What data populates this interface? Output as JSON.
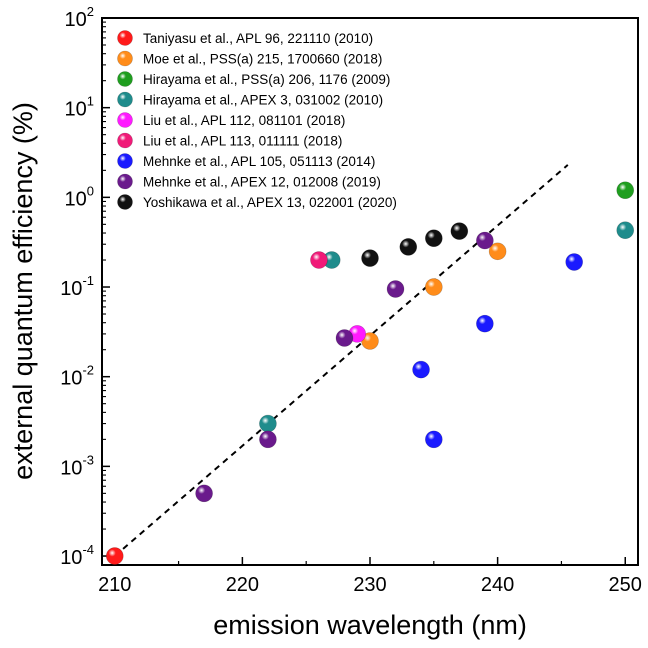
{
  "chart_data": {
    "type": "scatter",
    "xlabel": "emission wavelength (nm)",
    "ylabel": "external quantum efficiency (%)",
    "xlim": [
      209,
      251
    ],
    "ylim_log10": [
      -4.1,
      2
    ],
    "y_scale": "log",
    "grid": false,
    "legend_position": "top-left",
    "x_ticks": [
      210,
      220,
      230,
      240,
      250
    ],
    "x_tick_labels": [
      "210",
      "220",
      "230",
      "240",
      "250"
    ],
    "y_ticks_exp": [
      -4,
      -3,
      -2,
      -1,
      0,
      1,
      2
    ],
    "y_tick_base": "10",
    "y_tick_exponents": [
      "-4",
      "-3",
      "-2",
      "-1",
      "0",
      "1",
      "2"
    ],
    "trend_line": {
      "style": "dashed",
      "color": "#000000",
      "points": [
        [
          210,
          0.0001
        ],
        [
          245.5,
          2.3
        ]
      ]
    },
    "series": [
      {
        "name": "Taniyasu et al., APL 96, 221110 (2010)",
        "color": "#ff1a1a",
        "points": [
          [
            210,
            0.0001
          ]
        ]
      },
      {
        "name": "Moe et al., PSS(a) 215, 1700660 (2018)",
        "color": "#ff8c1a",
        "points": [
          [
            230,
            0.025
          ],
          [
            235,
            0.1
          ],
          [
            240,
            0.25
          ]
        ]
      },
      {
        "name": "Hirayama et al., PSS(a) 206, 1176 (2009)",
        "color": "#1f9e1f",
        "points": [
          [
            250,
            1.2
          ]
        ]
      },
      {
        "name": "Hirayama et al., APEX 3, 031002 (2010)",
        "color": "#1f8c8c",
        "points": [
          [
            222,
            0.003
          ],
          [
            227,
            0.2
          ],
          [
            250,
            0.43
          ]
        ]
      },
      {
        "name": "Liu et al., APL 112, 081101 (2018)",
        "color": "#ff1aff",
        "points": [
          [
            229,
            0.03
          ]
        ]
      },
      {
        "name": "Liu et al., APL 113, 011111 (2018)",
        "color": "#f01a78",
        "points": [
          [
            226,
            0.2
          ]
        ]
      },
      {
        "name": "Mehnke et al., APL 105, 051113 (2014)",
        "color": "#1a1aff",
        "points": [
          [
            234,
            0.012
          ],
          [
            235,
            0.002
          ],
          [
            239,
            0.039
          ],
          [
            246,
            0.19
          ]
        ]
      },
      {
        "name": "Mehnke et al., APEX 12, 012008 (2019)",
        "color": "#6a1a8c",
        "points": [
          [
            217,
            0.0005
          ],
          [
            222,
            0.002
          ],
          [
            228,
            0.027
          ],
          [
            232,
            0.095
          ],
          [
            239,
            0.33
          ]
        ]
      },
      {
        "name": "Yoshikawa et al., APEX 13, 022001 (2020)",
        "color": "#111111",
        "points": [
          [
            230,
            0.21
          ],
          [
            233,
            0.28
          ],
          [
            235,
            0.35
          ],
          [
            237,
            0.42
          ]
        ]
      }
    ]
  }
}
